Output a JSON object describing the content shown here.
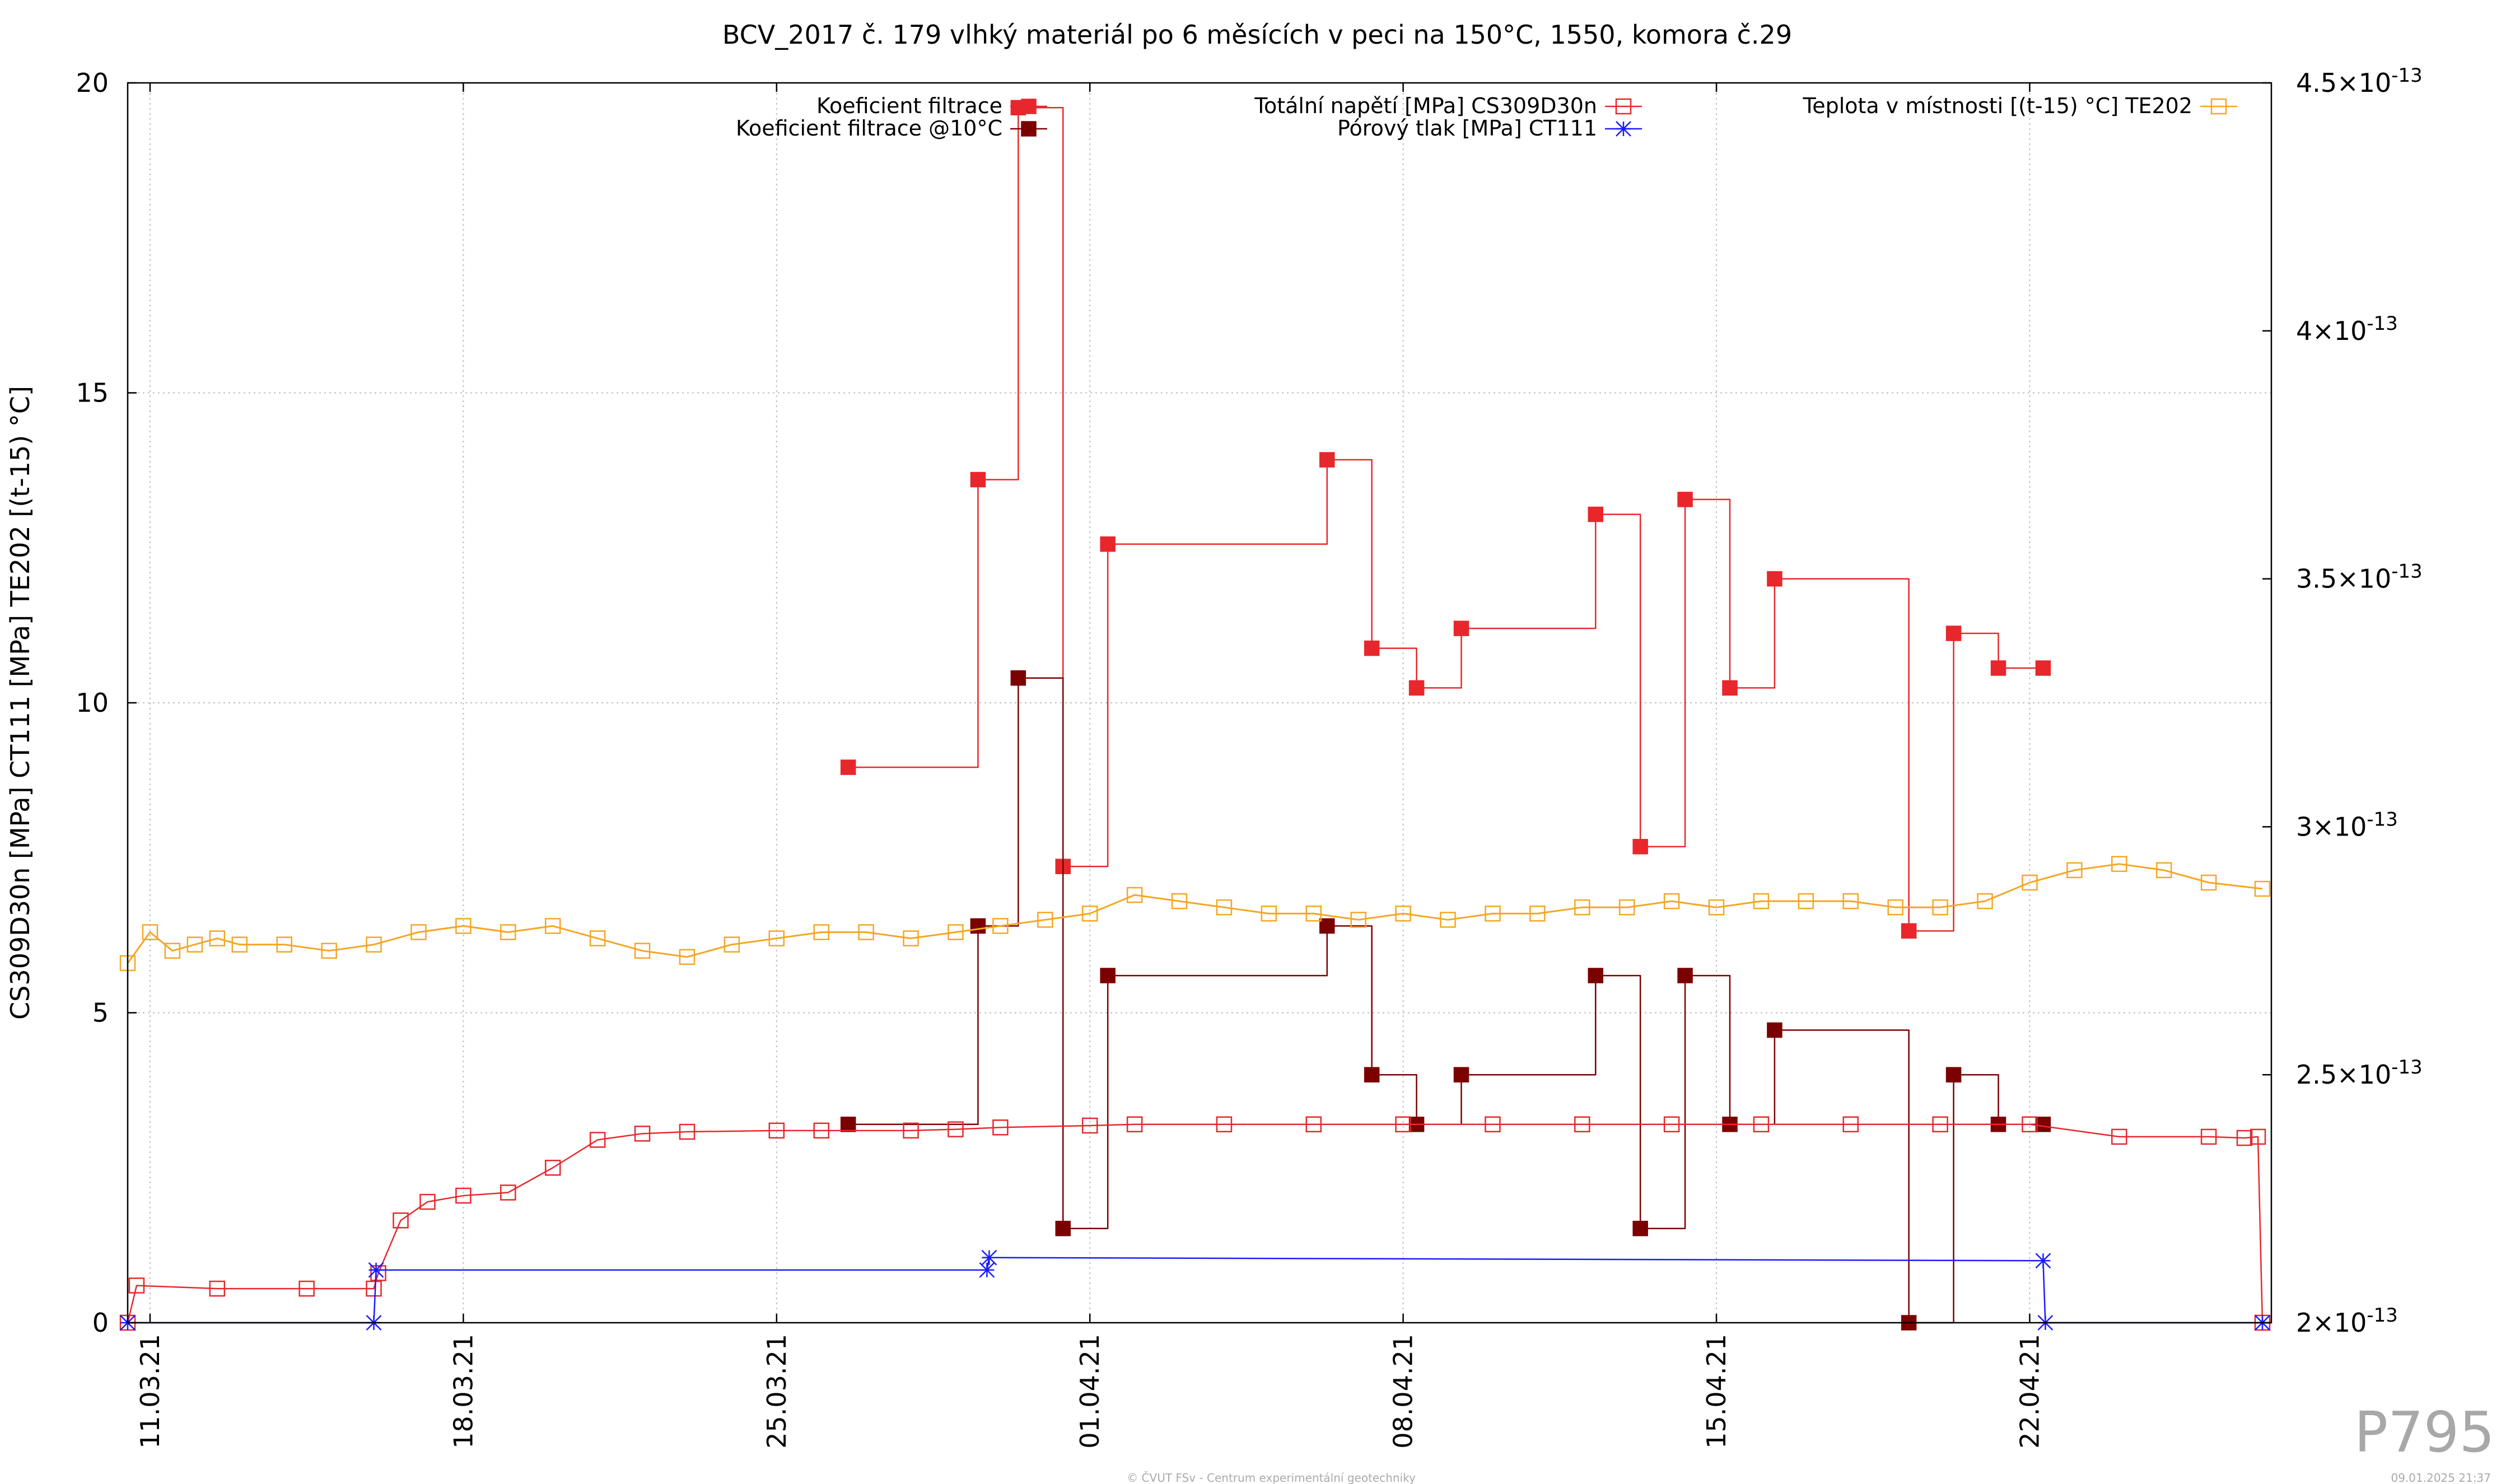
{
  "chart_data": {
    "type": "line",
    "title": "BCV_2017 č. 179 vlhký materiál po 6 měsících v peci na 150°C, 1550, komora č.29",
    "ylabel": "CS309D30n [MPa] CT111 [MPa] TE202 [(t-15) °C]",
    "y2label": "",
    "xlabel": "",
    "x_unit": "days from 11.03.21",
    "xlim": [
      -0.5,
      47.4
    ],
    "ylim": [
      0,
      20
    ],
    "y2lim": [
      2e-13,
      4.5e-13
    ],
    "x_ticks": [
      {
        "x": 0,
        "label": "11.03.21"
      },
      {
        "x": 7,
        "label": "18.03.21"
      },
      {
        "x": 14,
        "label": "25.03.21"
      },
      {
        "x": 21,
        "label": "01.04.21"
      },
      {
        "x": 28,
        "label": "08.04.21"
      },
      {
        "x": 35,
        "label": "15.04.21"
      },
      {
        "x": 42,
        "label": "22.04.21"
      }
    ],
    "y_ticks": [
      "0",
      "5",
      "10",
      "15",
      "20"
    ],
    "y2_ticks": [
      {
        "v": 2e-13,
        "mant": "2×10",
        "exp": "-13"
      },
      {
        "v": 2.5e-13,
        "mant": "2.5×10",
        "exp": "-13"
      },
      {
        "v": 3e-13,
        "mant": "3×10",
        "exp": "-13"
      },
      {
        "v": 3.5e-13,
        "mant": "3.5×10",
        "exp": "-13"
      },
      {
        "v": 4e-13,
        "mant": "4×10",
        "exp": "-13"
      },
      {
        "v": 4.5e-13,
        "mant": "4.5×10",
        "exp": "-13"
      }
    ],
    "grid": true,
    "legend_placement": "top",
    "series": [
      {
        "name": "Koeficient filtrace",
        "axis": "y2",
        "color": "#e8272c",
        "marker": "filled-square",
        "step": true,
        "x": [
          15.6,
          18.5,
          19.4,
          20.4,
          21.4,
          26.3,
          27.3,
          28.3,
          29.3,
          32.3,
          33.3,
          34.3,
          35.3,
          36.3,
          39.3,
          40.3,
          41.3,
          42.3
        ],
        "y": [
          3.12e-13,
          3.7e-13,
          4.45e-13,
          2.92e-13,
          3.57e-13,
          3.74e-13,
          3.36e-13,
          3.28e-13,
          3.4e-13,
          3.63e-13,
          2.96e-13,
          3.66e-13,
          3.28e-13,
          3.5e-13,
          2.79e-13,
          3.39e-13,
          3.32e-13,
          3.32e-13
        ]
      },
      {
        "name": "Koeficient filtrace @10°C",
        "axis": "y2",
        "color": "#7b0000",
        "marker": "filled-square",
        "step": true,
        "x": [
          15.6,
          18.5,
          19.4,
          20.4,
          21.4,
          26.3,
          27.3,
          28.3,
          29.3,
          32.3,
          33.3,
          34.3,
          35.3,
          36.3,
          39.3,
          40.3,
          41.3,
          42.3
        ],
        "y": [
          2.4e-13,
          2.8e-13,
          3.3e-13,
          2.19e-13,
          2.7e-13,
          2.8e-13,
          2.5e-13,
          2.4e-13,
          2.5e-13,
          2.7e-13,
          2.19e-13,
          2.7e-13,
          2.4e-13,
          2.59e-13,
          2e-13,
          2.5e-13,
          2.4e-13,
          2.4e-13
        ]
      },
      {
        "name": "Totální napětí [MPa] CS309D30n",
        "axis": "y",
        "color": "#e8272c",
        "marker": "open-square",
        "x": [
          -0.5,
          -0.3,
          1.5,
          3.5,
          5.0,
          5.1,
          5.6,
          6.2,
          7.0,
          8.0,
          9.0,
          10.0,
          11.0,
          12.0,
          14.0,
          15.0,
          17.0,
          18.0,
          19.0,
          21.0,
          22.0,
          24.0,
          26.0,
          28.0,
          30.0,
          32.0,
          34.0,
          36.0,
          38.0,
          40.0,
          42.0,
          44.0,
          46.0,
          46.8,
          47.1,
          47.2
        ],
        "y": [
          0.0,
          0.6,
          0.55,
          0.55,
          0.55,
          0.8,
          1.65,
          1.95,
          2.05,
          2.1,
          2.5,
          2.95,
          3.05,
          3.08,
          3.1,
          3.1,
          3.1,
          3.12,
          3.15,
          3.18,
          3.2,
          3.2,
          3.2,
          3.2,
          3.2,
          3.2,
          3.2,
          3.2,
          3.2,
          3.2,
          3.2,
          3.0,
          3.0,
          2.98,
          3.0,
          0.0
        ]
      },
      {
        "name": "Pórový tlak [MPa] CT111",
        "axis": "y",
        "color": "#1a1aff",
        "marker": "star",
        "x": [
          -0.5,
          5.0,
          5.05,
          18.7,
          18.75,
          42.3,
          42.35,
          47.2
        ],
        "y": [
          0.0,
          0.0,
          0.85,
          0.85,
          1.05,
          1.0,
          0.0,
          0.0
        ]
      },
      {
        "name": "Teplota v místnosti [(t-15) °C] TE202",
        "axis": "y",
        "color": "#f5a623",
        "marker": "open-square",
        "x": [
          -0.5,
          0.0,
          0.5,
          1.0,
          1.5,
          2.0,
          3.0,
          4.0,
          5.0,
          6.0,
          7.0,
          8.0,
          9.0,
          10.0,
          11.0,
          12.0,
          13.0,
          14.0,
          15.0,
          16.0,
          17.0,
          18.0,
          19.0,
          20.0,
          21.0,
          22.0,
          23.0,
          24.0,
          25.0,
          26.0,
          27.0,
          28.0,
          29.0,
          30.0,
          31.0,
          32.0,
          33.0,
          34.0,
          35.0,
          36.0,
          37.0,
          38.0,
          39.0,
          40.0,
          41.0,
          42.0,
          43.0,
          44.0,
          45.0,
          46.0,
          47.2
        ],
        "y": [
          5.8,
          6.3,
          6.0,
          6.1,
          6.2,
          6.1,
          6.1,
          6.0,
          6.1,
          6.3,
          6.4,
          6.3,
          6.4,
          6.2,
          6.0,
          5.9,
          6.1,
          6.2,
          6.3,
          6.3,
          6.2,
          6.3,
          6.4,
          6.5,
          6.6,
          6.9,
          6.8,
          6.7,
          6.6,
          6.6,
          6.5,
          6.6,
          6.5,
          6.6,
          6.6,
          6.7,
          6.7,
          6.8,
          6.7,
          6.8,
          6.8,
          6.8,
          6.7,
          6.7,
          6.8,
          7.1,
          7.3,
          7.4,
          7.3,
          7.1,
          7.0
        ]
      }
    ],
    "footer_mark": "P795",
    "footer_credit": "© ČVUT FSv - Centrum experimentální geotechniky",
    "footer_date": "09.01.2025 21:37"
  }
}
